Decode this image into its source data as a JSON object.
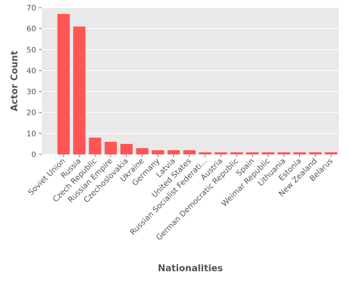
{
  "chart_data": {
    "type": "bar",
    "xlabel": "Nationalities",
    "ylabel": "Actor Count",
    "categories": [
      "Soviet Union",
      "Russia",
      "Czech Republic",
      "Russian Empire",
      "Czechoslovakia",
      "Ukraine",
      "Germany",
      "Latvia",
      "United States",
      "Russian Socialist Federati...",
      "Austria",
      "German Democratic Republic",
      "Spain",
      "Weimar Republic",
      "Lithuania",
      "Estonia",
      "New Zealand",
      "Belarus"
    ],
    "values": [
      67,
      61,
      8,
      6,
      5,
      3,
      2,
      2,
      2,
      1,
      1,
      1,
      1,
      1,
      1,
      1,
      1,
      1
    ],
    "ylim": [
      0,
      70
    ],
    "yticks": [
      0,
      10,
      20,
      30,
      40,
      50,
      60,
      70
    ],
    "grid": true,
    "colors": {
      "bar": "#ff5555",
      "plot_background": "#e9e9e9",
      "grid": "#ffffff",
      "tick_text": "#555555",
      "axis_label": "#555555"
    }
  }
}
